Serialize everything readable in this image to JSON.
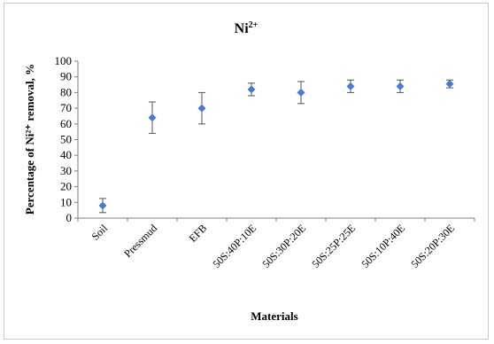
{
  "chart_data": {
    "type": "scatter",
    "title": "Ni",
    "title_superscript": "2+",
    "xlabel": "Materials",
    "ylabel": "Percentage of Ni²⁺ removal, %",
    "ylim": [
      0,
      100
    ],
    "yticks": [
      0,
      10,
      20,
      30,
      40,
      50,
      60,
      70,
      80,
      90,
      100
    ],
    "grid": false,
    "categories": [
      "Soil",
      "Pressmud",
      "EFB",
      "50S:40P:10E",
      "50S:30P:20E",
      "50S:25P:25E",
      "50S:10P:40E",
      "50S:20P:30E"
    ],
    "series": [
      {
        "values": [
          8,
          64,
          70,
          82,
          80,
          84,
          84,
          85.5
        ],
        "error": [
          4.5,
          10,
          10,
          4,
          7,
          4,
          4,
          2.5
        ],
        "color": "#4a7ac8",
        "marker": "diamond"
      }
    ]
  }
}
